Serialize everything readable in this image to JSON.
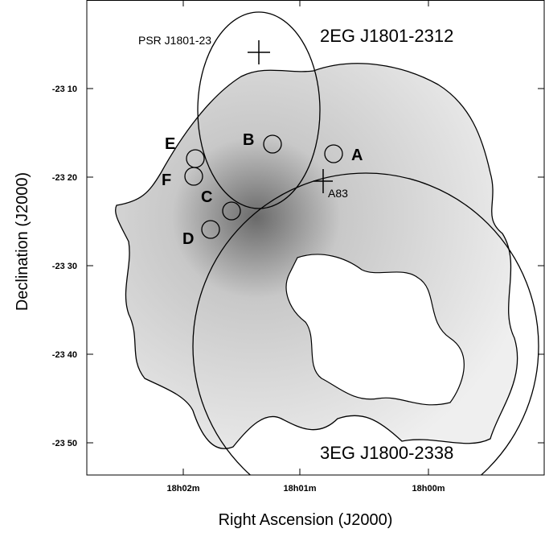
{
  "figure": {
    "x_axis_label": "Right Ascension (J2000)",
    "y_axis_label": "Declination (J2000)",
    "x_tick_labels": [
      "18h02m",
      "18h01m",
      "18h00m"
    ],
    "y_tick_labels": [
      "-23 10",
      "-23 20",
      "-23 30",
      "-23 40",
      "-23 50"
    ],
    "annotations": {
      "egret_2": "2EG J1801-2312",
      "egret_3": "3EG J1800-2338",
      "pulsar": "PSR J1801-23",
      "a83": "A83"
    },
    "sources": [
      "A",
      "B",
      "C",
      "D",
      "E",
      "F"
    ]
  }
}
